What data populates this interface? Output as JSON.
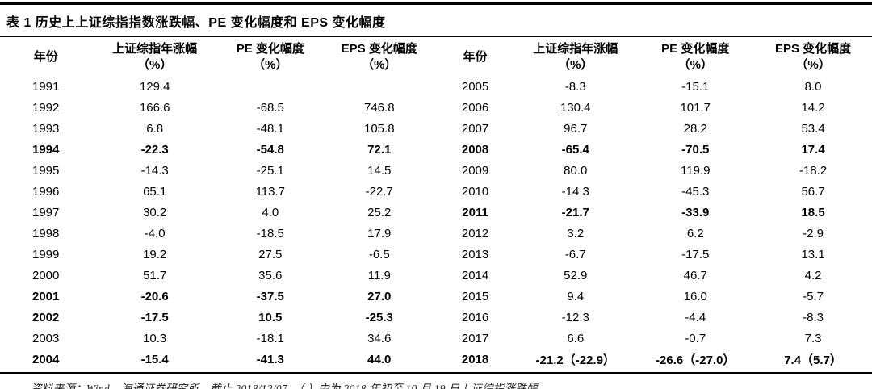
{
  "colors": {
    "background": "#ffffff",
    "text": "#000000",
    "rule": "#000000"
  },
  "table": {
    "title": "表 1  历史上上证综指指数涨跌幅、PE 变化幅度和 EPS 变化幅度",
    "header": {
      "year": "年份",
      "columns": [
        {
          "line1": "上证综指年涨幅",
          "line2": "（%）"
        },
        {
          "line1": "PE 变化幅度",
          "line2": "（%）"
        },
        {
          "line1": "EPS 变化幅度",
          "line2": "（%）"
        }
      ]
    },
    "left_rows": [
      {
        "year": "1991",
        "values": [
          "129.4",
          "",
          ""
        ],
        "bold": false
      },
      {
        "year": "1992",
        "values": [
          "166.6",
          "-68.5",
          "746.8"
        ],
        "bold": false
      },
      {
        "year": "1993",
        "values": [
          "6.8",
          "-48.1",
          "105.8"
        ],
        "bold": false
      },
      {
        "year": "1994",
        "values": [
          "-22.3",
          "-54.8",
          "72.1"
        ],
        "bold": true
      },
      {
        "year": "1995",
        "values": [
          "-14.3",
          "-25.1",
          "14.5"
        ],
        "bold": false
      },
      {
        "year": "1996",
        "values": [
          "65.1",
          "113.7",
          "-22.7"
        ],
        "bold": false
      },
      {
        "year": "1997",
        "values": [
          "30.2",
          "4.0",
          "25.2"
        ],
        "bold": false
      },
      {
        "year": "1998",
        "values": [
          "-4.0",
          "-18.5",
          "17.9"
        ],
        "bold": false
      },
      {
        "year": "1999",
        "values": [
          "19.2",
          "27.5",
          "-6.5"
        ],
        "bold": false
      },
      {
        "year": "2000",
        "values": [
          "51.7",
          "35.6",
          "11.9"
        ],
        "bold": false
      },
      {
        "year": "2001",
        "values": [
          "-20.6",
          "-37.5",
          "27.0"
        ],
        "bold": true
      },
      {
        "year": "2002",
        "values": [
          "-17.5",
          "10.5",
          "-25.3"
        ],
        "bold": true
      },
      {
        "year": "2003",
        "values": [
          "10.3",
          "-18.1",
          "34.6"
        ],
        "bold": false
      },
      {
        "year": "2004",
        "values": [
          "-15.4",
          "-41.3",
          "44.0"
        ],
        "bold": true
      }
    ],
    "right_rows": [
      {
        "year": "2005",
        "values": [
          "-8.3",
          "-15.1",
          "8.0"
        ],
        "bold": false
      },
      {
        "year": "2006",
        "values": [
          "130.4",
          "101.7",
          "14.2"
        ],
        "bold": false
      },
      {
        "year": "2007",
        "values": [
          "96.7",
          "28.2",
          "53.4"
        ],
        "bold": false
      },
      {
        "year": "2008",
        "values": [
          "-65.4",
          "-70.5",
          "17.4"
        ],
        "bold": true
      },
      {
        "year": "2009",
        "values": [
          "80.0",
          "119.9",
          "-18.2"
        ],
        "bold": false
      },
      {
        "year": "2010",
        "values": [
          "-14.3",
          "-45.3",
          "56.7"
        ],
        "bold": false
      },
      {
        "year": "2011",
        "values": [
          "-21.7",
          "-33.9",
          "18.5"
        ],
        "bold": true
      },
      {
        "year": "2012",
        "values": [
          "3.2",
          "6.2",
          "-2.9"
        ],
        "bold": false
      },
      {
        "year": "2013",
        "values": [
          "-6.7",
          "-17.5",
          "13.1"
        ],
        "bold": false
      },
      {
        "year": "2014",
        "values": [
          "52.9",
          "46.7",
          "4.2"
        ],
        "bold": false
      },
      {
        "year": "2015",
        "values": [
          "9.4",
          "16.0",
          "-5.7"
        ],
        "bold": false
      },
      {
        "year": "2016",
        "values": [
          "-12.3",
          "-4.4",
          "-8.3"
        ],
        "bold": false
      },
      {
        "year": "2017",
        "values": [
          "6.6",
          "-0.7",
          "7.3"
        ],
        "bold": false
      },
      {
        "year": "2018",
        "values": [
          "-21.2（-22.9）",
          "-26.6（-27.0）",
          "7.4（5.7）"
        ],
        "bold": true
      }
    ],
    "source_note": "资料来源：Wind，海通证券研究所，截止 2018/12/07，（ ）中为 2018 年初至 10 月 19 日上证综指涨跌幅"
  }
}
